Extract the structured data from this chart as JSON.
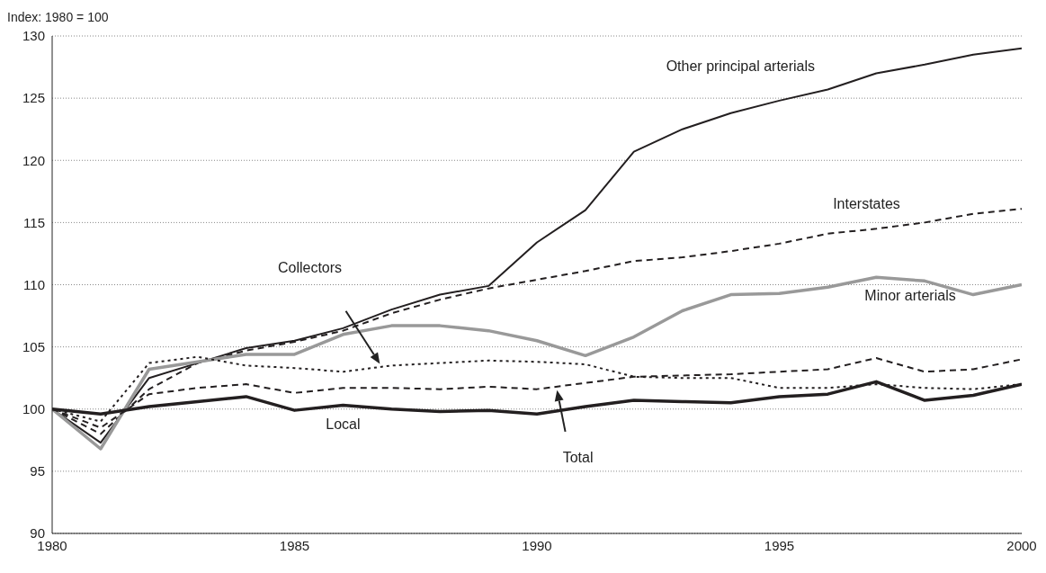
{
  "chart_data": {
    "type": "line",
    "ylabel": "Index: 1980 = 100",
    "x": [
      1980,
      1981,
      1982,
      1983,
      1984,
      1985,
      1986,
      1987,
      1988,
      1989,
      1990,
      1991,
      1992,
      1993,
      1994,
      1995,
      1996,
      1997,
      1998,
      1999,
      2000
    ],
    "series": [
      {
        "name": "Other principal arterials",
        "color": "#231f20",
        "line_style": "solid",
        "values": [
          100,
          97.3,
          102.5,
          103.7,
          104.9,
          105.5,
          106.5,
          108.0,
          109.2,
          109.9,
          113.4,
          116.0,
          120.7,
          122.5,
          123.8,
          124.8,
          125.7,
          127.0,
          127.7,
          128.5,
          129.0
        ]
      },
      {
        "name": "Interstates",
        "color": "#231f20",
        "line_style": "dashed",
        "values": [
          100,
          98.0,
          101.6,
          103.7,
          104.7,
          105.4,
          106.3,
          107.7,
          108.8,
          109.7,
          110.4,
          111.1,
          111.9,
          112.2,
          112.7,
          113.3,
          114.1,
          114.5,
          115.0,
          115.7,
          116.1
        ]
      },
      {
        "name": "Minor arterials",
        "color": "#999999",
        "line_style": "solid",
        "values": [
          100,
          96.8,
          103.2,
          103.8,
          104.4,
          104.4,
          106.0,
          106.7,
          106.7,
          106.3,
          105.5,
          104.3,
          105.8,
          107.9,
          109.2,
          109.3,
          109.8,
          110.6,
          110.3,
          109.2,
          110.0
        ]
      },
      {
        "color": "#231f20",
        "line_style": "dotted",
        "values": [
          100,
          99.0,
          103.7,
          104.2,
          103.5,
          103.3,
          103.0,
          103.5,
          103.7,
          103.9,
          103.8,
          103.6,
          102.6,
          102.5,
          102.5,
          101.7,
          101.7,
          102.0,
          101.7,
          101.6,
          102.0
        ]
      },
      {
        "color": "#231f20",
        "line_style": "dashed",
        "values": [
          100,
          98.5,
          101.2,
          101.7,
          102.0,
          101.3,
          101.7,
          101.7,
          101.6,
          101.8,
          101.6,
          102.1,
          102.6,
          102.7,
          102.8,
          103.0,
          103.2,
          104.1,
          103.0,
          103.2,
          104.0
        ]
      },
      {
        "name": "Local",
        "color": "#231f20",
        "line_style": "solid",
        "values": [
          100,
          99.6,
          100.2,
          100.6,
          101.0,
          99.9,
          100.3,
          100.0,
          99.8,
          99.9,
          99.6,
          100.2,
          100.7,
          100.6,
          100.5,
          101.0,
          101.2,
          102.2,
          100.7,
          101.1,
          102.0
        ]
      }
    ],
    "xlim": [
      1980,
      2000
    ],
    "xticks": [
      1980,
      1985,
      1990,
      1995,
      2000
    ],
    "ylim": [
      90,
      130
    ],
    "yticks": [
      90,
      95,
      100,
      105,
      110,
      115,
      120,
      125,
      130
    ],
    "annotations": [
      "Collectors",
      "Total"
    ],
    "grid": "y",
    "marker": "none"
  }
}
